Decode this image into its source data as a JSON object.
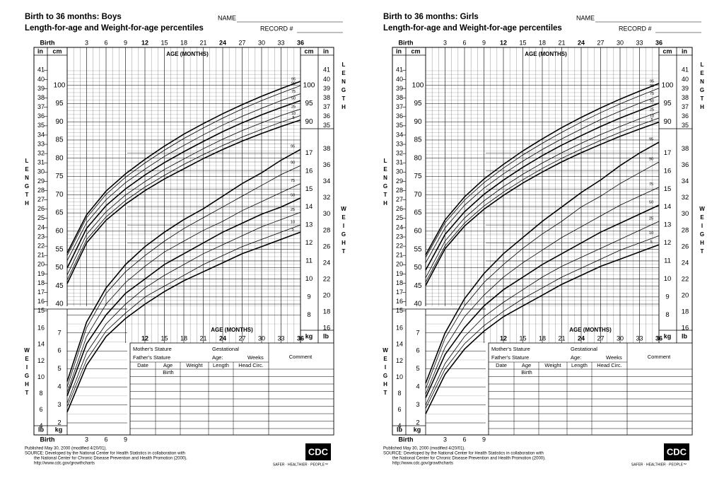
{
  "panels": [
    {
      "title1": "Birth to 36 months: Boys",
      "title2": "Length-for-age and Weight-for-age percentiles",
      "name_label": "NAME",
      "record_label": "RECORD #",
      "birth_label": "Birth",
      "top_age_ticks": [
        "3",
        "6",
        "9",
        "12",
        "15",
        "18",
        "21",
        "24",
        "27",
        "30",
        "33",
        "36"
      ],
      "bold_top_ticks": [
        "12",
        "24",
        "36"
      ],
      "age_months_label": "AGE (MONTHS)",
      "in_label": "in",
      "cm_label": "cm",
      "kg_label": "kg",
      "lb_label": "lb",
      "length_side": "LENGTH",
      "weight_side": "WEIGHT",
      "left_in_ticks": [
        "41",
        "40",
        "39",
        "38",
        "37",
        "36",
        "35",
        "34",
        "33",
        "32",
        "31",
        "30",
        "29",
        "28",
        "27",
        "26",
        "25",
        "24",
        "23",
        "22",
        "21",
        "20",
        "19",
        "18",
        "17",
        "16",
        "15"
      ],
      "left_cm_ticks": [
        "100",
        "95",
        "90",
        "85",
        "80",
        "75",
        "70",
        "65",
        "60",
        "55",
        "50",
        "45",
        "40"
      ],
      "right_cm_ticks": [
        "100",
        "95",
        "90"
      ],
      "right_in_ticks": [
        "41",
        "40",
        "39",
        "38",
        "37",
        "36",
        "35"
      ],
      "right_kg_ticks": [
        "17",
        "16",
        "15",
        "14",
        "13",
        "12",
        "11",
        "10",
        "9",
        "8"
      ],
      "right_lb_ticks": [
        "38",
        "36",
        "34",
        "32",
        "30",
        "28",
        "26",
        "24",
        "22",
        "20",
        "18",
        "16"
      ],
      "lower_lb_ticks": [
        "16",
        "14",
        "12",
        "10",
        "8",
        "6",
        "4"
      ],
      "lower_kg_ticks": [
        "7",
        "6",
        "5",
        "4",
        "3",
        "2"
      ],
      "bottom_age_ticks": [
        "12",
        "15",
        "18",
        "21",
        "24",
        "27",
        "30",
        "33",
        "36"
      ],
      "bottom_birth_ticks": [
        "Birth",
        "3",
        "6",
        "9"
      ],
      "length_pct_labels": [
        "95",
        "90",
        "75",
        "50",
        "25",
        "10",
        "5"
      ],
      "weight_pct_labels": [
        "95",
        "90",
        "75",
        "50",
        "25",
        "10",
        "5"
      ],
      "table": {
        "mothers_stature": "Mother's Stature",
        "fathers_stature": "Father's Stature",
        "gestational": "Gestational",
        "age_label": "Age:",
        "weeks": "Weeks",
        "comment": "Comment",
        "headers": [
          "Date",
          "Age",
          "Weight",
          "Length",
          "Head Circ."
        ],
        "first_age": "Birth"
      },
      "footer": [
        "Published May 30, 2000 (modified 4/20/01).",
        "SOURCE: Developed by the National Center for Health Statistics in collaboration with",
        "the National Center for Chronic Disease Prevention and Health Promotion (2000).",
        "http://www.cdc.gov/growthcharts"
      ],
      "logo": "CDC",
      "tagline": "SAFER · HEALTHIER · PEOPLE™"
    },
    {
      "title1": "Birth to 36 months: Girls",
      "title2": "Length-for-age and Weight-for-age percentiles",
      "name_label": "NAME",
      "record_label": "RECORD #",
      "birth_label": "Birth",
      "top_age_ticks": [
        "3",
        "6",
        "9",
        "12",
        "15",
        "18",
        "21",
        "24",
        "27",
        "30",
        "33",
        "36"
      ],
      "bold_top_ticks": [
        "12",
        "24",
        "36"
      ],
      "age_months_label": "AGE (MONTHS)",
      "in_label": "in",
      "cm_label": "cm",
      "kg_label": "kg",
      "lb_label": "lb",
      "length_side": "LENGTH",
      "weight_side": "WEIGHT",
      "left_in_ticks": [
        "41",
        "40",
        "39",
        "38",
        "37",
        "36",
        "35",
        "34",
        "33",
        "32",
        "31",
        "30",
        "29",
        "28",
        "27",
        "26",
        "25",
        "24",
        "23",
        "22",
        "21",
        "20",
        "19",
        "18",
        "17",
        "16",
        "15"
      ],
      "left_cm_ticks": [
        "100",
        "95",
        "90",
        "85",
        "80",
        "75",
        "70",
        "65",
        "60",
        "55",
        "50",
        "45",
        "40"
      ],
      "right_cm_ticks": [
        "100",
        "95",
        "90"
      ],
      "right_in_ticks": [
        "41",
        "40",
        "39",
        "38",
        "37",
        "36",
        "35"
      ],
      "right_kg_ticks": [
        "17",
        "16",
        "15",
        "14",
        "13",
        "12",
        "11",
        "10",
        "9",
        "8"
      ],
      "right_lb_ticks": [
        "38",
        "36",
        "34",
        "32",
        "30",
        "28",
        "26",
        "24",
        "22",
        "20",
        "18",
        "16"
      ],
      "lower_lb_ticks": [
        "16",
        "14",
        "12",
        "10",
        "8",
        "6",
        "4"
      ],
      "lower_kg_ticks": [
        "7",
        "6",
        "5",
        "4",
        "3",
        "2"
      ],
      "bottom_age_ticks": [
        "12",
        "15",
        "18",
        "21",
        "24",
        "27",
        "30",
        "33",
        "36"
      ],
      "bottom_birth_ticks": [
        "Birth",
        "3",
        "6",
        "9"
      ],
      "length_pct_labels": [
        "95",
        "90",
        "75",
        "50",
        "25",
        "10",
        "5"
      ],
      "weight_pct_labels": [
        "95",
        "90",
        "75",
        "50",
        "25",
        "10",
        "5"
      ],
      "table": {
        "mothers_stature": "Mother's Stature",
        "fathers_stature": "Father's Stature",
        "gestational": "Gestational",
        "age_label": "Age:",
        "weeks": "Weeks",
        "comment": "Comment",
        "headers": [
          "Date",
          "Age",
          "Weight",
          "Length",
          "Head Circ."
        ],
        "first_age": "Birth"
      },
      "footer": [
        "Published May 30, 2000 (modified 4/20/01).",
        "SOURCE: Developed by the National Center for Health Statistics in collaboration with",
        "the National Center for Chronic Disease Prevention and Health Promotion (2000).",
        "http://www.cdc.gov/growthcharts"
      ],
      "logo": "CDC",
      "tagline": "SAFER · HEALTHIER · PEOPLE™"
    }
  ],
  "chart_data": [
    {
      "type": "line",
      "title": "Birth to 36 months: Boys",
      "subtitle": "Length-for-age percentiles",
      "xlabel": "AGE (MONTHS)",
      "ylabel": "LENGTH",
      "x": [
        0,
        3,
        6,
        9,
        12,
        15,
        18,
        21,
        24,
        27,
        30,
        33,
        36
      ],
      "xlim": [
        0,
        36
      ],
      "ylim": [
        40,
        104
      ],
      "series": [
        {
          "name": "95",
          "values": [
            54.0,
            64.5,
            71.0,
            75.7,
            79.7,
            83.3,
            86.6,
            89.5,
            92.2,
            94.7,
            97.0,
            99.1,
            101.1
          ]
        },
        {
          "name": "90",
          "values": [
            53.3,
            63.7,
            70.1,
            74.8,
            78.7,
            82.2,
            85.4,
            88.3,
            91.0,
            93.5,
            95.8,
            97.9,
            99.9
          ]
        },
        {
          "name": "75",
          "values": [
            51.9,
            62.3,
            68.6,
            73.3,
            77.0,
            80.5,
            83.5,
            86.4,
            89.1,
            91.5,
            93.7,
            95.8,
            97.7
          ]
        },
        {
          "name": "50",
          "values": [
            49.9,
            60.8,
            67.0,
            71.6,
            75.4,
            78.8,
            81.8,
            84.6,
            87.3,
            89.7,
            91.9,
            93.9,
            95.8
          ]
        },
        {
          "name": "25",
          "values": [
            48.0,
            59.1,
            65.3,
            69.9,
            73.6,
            76.9,
            79.8,
            82.6,
            85.2,
            87.6,
            89.7,
            91.7,
            93.5
          ]
        },
        {
          "name": "10",
          "values": [
            46.6,
            57.7,
            63.9,
            68.4,
            72.1,
            75.3,
            78.3,
            81.0,
            83.5,
            85.8,
            87.9,
            89.9,
            91.7
          ]
        },
        {
          "name": "5",
          "values": [
            45.6,
            56.8,
            63.0,
            67.4,
            71.1,
            74.3,
            77.1,
            79.9,
            82.4,
            84.7,
            86.8,
            88.7,
            90.5
          ]
        }
      ]
    },
    {
      "type": "line",
      "title": "Birth to 36 months: Boys",
      "subtitle": "Weight-for-age percentiles",
      "xlabel": "AGE (MONTHS)",
      "ylabel": "WEIGHT",
      "x": [
        0,
        3,
        6,
        9,
        12,
        15,
        18,
        21,
        24,
        27,
        30,
        33,
        36
      ],
      "xlim": [
        0,
        36
      ],
      "ylim": [
        1.6,
        17.8
      ],
      "series": [
        {
          "name": "95",
          "values": [
            4.3,
            7.6,
            9.5,
            10.8,
            11.8,
            12.6,
            13.3,
            13.9,
            14.6,
            15.3,
            15.9,
            16.6,
            17.2
          ]
        },
        {
          "name": "90",
          "values": [
            4.0,
            7.3,
            9.2,
            10.4,
            11.3,
            12.1,
            12.8,
            13.4,
            14.0,
            14.6,
            15.2,
            15.8,
            16.3
          ]
        },
        {
          "name": "75",
          "values": [
            3.7,
            6.8,
            8.6,
            9.8,
            10.7,
            11.5,
            12.1,
            12.7,
            13.2,
            13.8,
            14.3,
            14.8,
            15.3
          ]
        },
        {
          "name": "50",
          "values": [
            3.5,
            6.4,
            8.0,
            9.2,
            10.0,
            10.8,
            11.4,
            12.0,
            12.6,
            13.1,
            13.6,
            14.0,
            14.5
          ]
        },
        {
          "name": "25",
          "values": [
            3.1,
            5.9,
            7.5,
            8.6,
            9.5,
            10.2,
            10.8,
            11.4,
            11.9,
            12.4,
            12.9,
            13.3,
            13.7
          ]
        },
        {
          "name": "10",
          "values": [
            2.9,
            5.5,
            7.1,
            8.1,
            9.0,
            9.6,
            10.2,
            10.8,
            11.3,
            11.8,
            12.2,
            12.6,
            13.0
          ]
        },
        {
          "name": "5",
          "values": [
            2.6,
            5.2,
            6.8,
            7.8,
            8.6,
            9.3,
            9.9,
            10.4,
            10.9,
            11.4,
            11.8,
            12.2,
            12.6
          ]
        }
      ]
    },
    {
      "type": "line",
      "title": "Birth to 36 months: Girls",
      "subtitle": "Length-for-age percentiles",
      "xlabel": "AGE (MONTHS)",
      "ylabel": "LENGTH",
      "x": [
        0,
        3,
        6,
        9,
        12,
        15,
        18,
        21,
        24,
        27,
        30,
        33,
        36
      ],
      "xlim": [
        0,
        36
      ],
      "ylim": [
        40,
        104
      ],
      "series": [
        {
          "name": "95",
          "values": [
            53.5,
            63.1,
            69.4,
            74.3,
            78.3,
            82.0,
            85.3,
            88.4,
            91.2,
            93.8,
            96.2,
            98.4,
            100.5
          ]
        },
        {
          "name": "90",
          "values": [
            52.8,
            62.3,
            68.5,
            73.3,
            77.3,
            80.9,
            84.1,
            87.1,
            89.9,
            92.5,
            94.9,
            97.1,
            99.2
          ]
        },
        {
          "name": "75",
          "values": [
            51.3,
            60.9,
            67.1,
            71.8,
            75.7,
            79.2,
            82.4,
            85.3,
            88.0,
            90.6,
            92.9,
            95.1,
            97.1
          ]
        },
        {
          "name": "50",
          "values": [
            49.3,
            59.1,
            65.3,
            70.1,
            74.0,
            77.5,
            80.7,
            83.6,
            86.2,
            88.7,
            91.0,
            93.1,
            95.1
          ]
        },
        {
          "name": "25",
          "values": [
            47.2,
            57.3,
            63.6,
            68.3,
            72.2,
            75.6,
            78.7,
            81.5,
            84.1,
            86.5,
            88.7,
            90.8,
            92.7
          ]
        },
        {
          "name": "10",
          "values": [
            46.0,
            56.0,
            62.2,
            66.9,
            70.7,
            74.1,
            77.2,
            80.0,
            82.5,
            84.9,
            87.1,
            89.1,
            91.0
          ]
        },
        {
          "name": "5",
          "values": [
            45.1,
            55.2,
            61.4,
            66.0,
            69.8,
            73.2,
            76.2,
            79.0,
            81.5,
            83.8,
            86.0,
            88.0,
            89.9
          ]
        }
      ]
    },
    {
      "type": "line",
      "title": "Birth to 36 months: Girls",
      "subtitle": "Weight-for-age percentiles",
      "xlabel": "AGE (MONTHS)",
      "ylabel": "WEIGHT",
      "x": [
        0,
        3,
        6,
        9,
        12,
        15,
        18,
        21,
        24,
        27,
        30,
        33,
        36
      ],
      "xlim": [
        0,
        36
      ],
      "ylim": [
        1.6,
        17.8
      ],
      "series": [
        {
          "name": "95",
          "values": [
            4.2,
            7.0,
            8.9,
            10.3,
            11.4,
            12.3,
            13.2,
            14.0,
            14.8,
            15.5,
            16.3,
            17.0,
            17.6
          ]
        },
        {
          "name": "90",
          "values": [
            3.9,
            6.7,
            8.5,
            9.8,
            10.8,
            11.7,
            12.5,
            13.2,
            14.0,
            14.6,
            15.3,
            15.9,
            16.5
          ]
        },
        {
          "name": "75",
          "values": [
            3.6,
            6.2,
            7.9,
            9.1,
            10.1,
            10.9,
            11.6,
            12.3,
            12.9,
            13.5,
            14.1,
            14.6,
            15.1
          ]
        },
        {
          "name": "50",
          "values": [
            3.4,
            5.8,
            7.3,
            8.5,
            9.4,
            10.1,
            10.8,
            11.4,
            12.0,
            12.6,
            13.1,
            13.6,
            14.1
          ]
        },
        {
          "name": "25",
          "values": [
            3.0,
            5.3,
            6.8,
            7.9,
            8.7,
            9.4,
            10.1,
            10.7,
            11.2,
            11.7,
            12.2,
            12.7,
            13.2
          ]
        },
        {
          "name": "10",
          "values": [
            2.8,
            5.0,
            6.4,
            7.4,
            8.2,
            8.9,
            9.5,
            10.1,
            10.6,
            11.1,
            11.6,
            12.0,
            12.4
          ]
        },
        {
          "name": "5",
          "values": [
            2.5,
            4.7,
            6.1,
            7.1,
            7.9,
            8.5,
            9.1,
            9.7,
            10.2,
            10.7,
            11.1,
            11.5,
            11.9
          ]
        }
      ]
    }
  ]
}
